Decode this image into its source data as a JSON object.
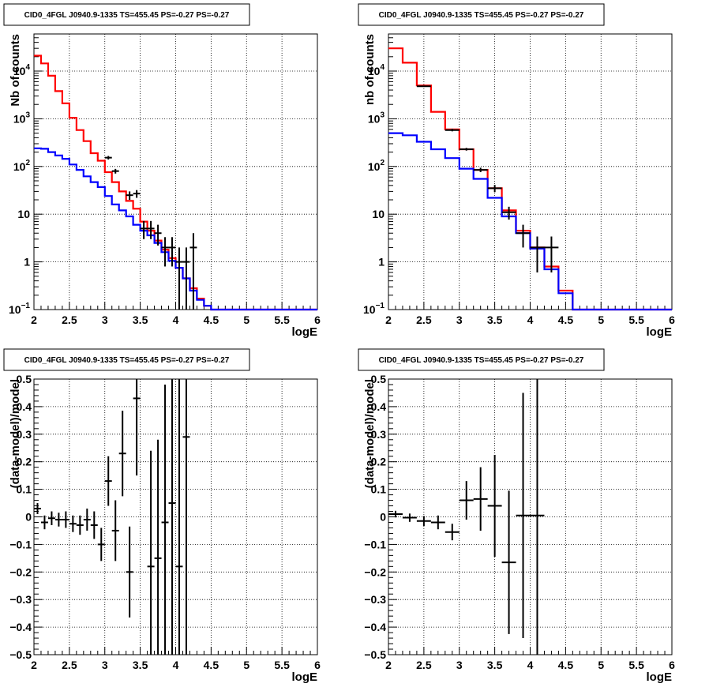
{
  "chart_data": [
    {
      "type": "line",
      "title": "CID0_4FGL J0940.9-1335 TS=455.45 PS=-0.27 PS=-0.27",
      "xlabel": "logE",
      "ylabel": "Nb of counts",
      "yscale": "log",
      "xlim": [
        2,
        6
      ],
      "ylim": [
        0.1,
        60000
      ],
      "x_ticks": [
        "2",
        "2.5",
        "3",
        "3.5",
        "4",
        "4.5",
        "5",
        "5.5",
        "6"
      ],
      "y_ticks": [
        {
          "value": 0.1,
          "base": "10",
          "exp": "−1"
        },
        {
          "value": 1,
          "label": "1"
        },
        {
          "value": 10,
          "label": "10"
        },
        {
          "value": 100,
          "base": "10",
          "exp": "2"
        },
        {
          "value": 1000,
          "base": "10",
          "exp": "3"
        },
        {
          "value": 10000,
          "base": "10",
          "exp": "4"
        }
      ],
      "grid": true,
      "series": [
        {
          "kind": "step",
          "color": "#ff0000",
          "edges": [
            2,
            2.1,
            2.2,
            2.3,
            2.4,
            2.5,
            2.6,
            2.7,
            2.8,
            2.9,
            3.0,
            3.1,
            3.2,
            3.3,
            3.4,
            3.5,
            3.6,
            3.7,
            3.8,
            3.9,
            4.0,
            4.1,
            4.2,
            4.3,
            4.4,
            4.5,
            6.0
          ],
          "values": [
            21000,
            14500,
            8000,
            3800,
            2100,
            1050,
            580,
            340,
            190,
            132,
            76,
            47,
            30,
            19,
            13,
            7,
            4.5,
            2.8,
            1.8,
            1.2,
            0.75,
            0.45,
            0.28,
            0.17,
            0.12,
            0.1
          ]
        },
        {
          "kind": "step",
          "color": "#0000ff",
          "edges": [
            2,
            2.1,
            2.2,
            2.3,
            2.4,
            2.5,
            2.6,
            2.7,
            2.8,
            2.9,
            3.0,
            3.1,
            3.2,
            3.3,
            3.4,
            3.5,
            3.6,
            3.7,
            3.8,
            3.9,
            4.0,
            4.1,
            4.2,
            4.3,
            4.4,
            4.5,
            6.0
          ],
          "values": [
            240,
            235,
            200,
            170,
            145,
            110,
            85,
            62,
            47,
            37,
            24,
            16,
            12,
            9,
            6,
            4.5,
            3.6,
            2.5,
            1.6,
            1.05,
            0.75,
            0.45,
            0.25,
            0.16,
            0.12,
            0.1
          ]
        },
        {
          "kind": "points",
          "color": "#000000",
          "xerr": 0.05,
          "points": [
            {
              "x": 3.05,
              "y": 153,
              "lo": 140,
              "hi": 166
            },
            {
              "x": 3.15,
              "y": 80,
              "lo": 71,
              "hi": 89
            },
            {
              "x": 3.35,
              "y": 25,
              "lo": 20,
              "hi": 30
            },
            {
              "x": 3.45,
              "y": 27,
              "lo": 22,
              "hi": 32
            },
            {
              "x": 3.55,
              "y": 5,
              "lo": 3,
              "hi": 7.2
            },
            {
              "x": 3.65,
              "y": 5,
              "lo": 3,
              "hi": 7.2
            },
            {
              "x": 3.75,
              "y": 4,
              "lo": 2.2,
              "hi": 6
            },
            {
              "x": 3.85,
              "y": 2,
              "lo": 0.8,
              "hi": 3.3
            },
            {
              "x": 3.95,
              "y": 2,
              "lo": 0.8,
              "hi": 3.3
            },
            {
              "x": 4.05,
              "y": 1,
              "lo": 0.1,
              "hi": 2
            },
            {
              "x": 4.15,
              "y": 1,
              "lo": 0.1,
              "hi": 2
            },
            {
              "x": 4.25,
              "y": 2,
              "lo": 0.1,
              "hi": 4
            }
          ]
        }
      ]
    },
    {
      "type": "line",
      "title": "CID0_4FGL J0940.9-1335 TS=455.45 PS=-0.27 PS=-0.27",
      "xlabel": "logE",
      "ylabel": "nb of counts",
      "yscale": "log",
      "xlim": [
        2,
        6
      ],
      "ylim": [
        0.1,
        60000
      ],
      "x_ticks": [
        "2",
        "2.5",
        "3",
        "3.5",
        "4",
        "4.5",
        "5",
        "5.5",
        "6"
      ],
      "y_ticks": [
        {
          "value": 0.1,
          "base": "10",
          "exp": "−1"
        },
        {
          "value": 1,
          "label": "1"
        },
        {
          "value": 10,
          "label": "10"
        },
        {
          "value": 100,
          "base": "10",
          "exp": "2"
        },
        {
          "value": 1000,
          "base": "10",
          "exp": "3"
        },
        {
          "value": 10000,
          "base": "10",
          "exp": "4"
        }
      ],
      "grid": true,
      "series": [
        {
          "kind": "step",
          "color": "#ff0000",
          "edges": [
            2,
            2.2,
            2.4,
            2.6,
            2.8,
            3.0,
            3.2,
            3.4,
            3.6,
            3.8,
            4.0,
            4.2,
            4.4,
            4.6,
            6.0
          ],
          "values": [
            30000,
            15000,
            5000,
            1400,
            600,
            230,
            85,
            35,
            12,
            4.5,
            2,
            0.8,
            0.25,
            0.1
          ]
        },
        {
          "kind": "step",
          "color": "#0000ff",
          "edges": [
            2,
            2.2,
            2.4,
            2.6,
            2.8,
            3.0,
            3.2,
            3.4,
            3.6,
            3.8,
            4.0,
            4.2,
            4.4,
            4.6,
            6.0
          ],
          "values": [
            500,
            450,
            330,
            230,
            150,
            90,
            55,
            22,
            9,
            4,
            1.9,
            0.7,
            0.22,
            0.1
          ]
        },
        {
          "kind": "points",
          "color": "#000000",
          "xerr": 0.1,
          "points": [
            {
              "x": 2.5,
              "y": 4800,
              "lo": 4650,
              "hi": 4950
            },
            {
              "x": 2.9,
              "y": 580,
              "lo": 545,
              "hi": 615
            },
            {
              "x": 3.1,
              "y": 230,
              "lo": 215,
              "hi": 245
            },
            {
              "x": 3.3,
              "y": 85,
              "lo": 76,
              "hi": 94
            },
            {
              "x": 3.5,
              "y": 35,
              "lo": 29,
              "hi": 41
            },
            {
              "x": 3.7,
              "y": 11,
              "lo": 7.7,
              "hi": 14.3
            },
            {
              "x": 3.9,
              "y": 4,
              "lo": 2,
              "hi": 6
            },
            {
              "x": 4.1,
              "y": 2,
              "lo": 0.6,
              "hi": 3.4
            },
            {
              "x": 4.3,
              "y": 2,
              "lo": 0.6,
              "hi": 3.4
            }
          ]
        }
      ]
    },
    {
      "type": "scatter",
      "title": "CID0_4FGL J0940.9-1335 TS=455.45 PS=-0.27 PS=-0.27",
      "xlabel": "logE",
      "ylabel": "(data-model)/model",
      "xlim": [
        2,
        6
      ],
      "ylim": [
        -0.5,
        0.5
      ],
      "x_ticks": [
        "2",
        "2.5",
        "3",
        "3.5",
        "4",
        "4.5",
        "5",
        "5.5",
        "6"
      ],
      "y_ticks": [
        "−0.5",
        "−0.4",
        "−0.3",
        "−0.2",
        "−0.1",
        "0",
        "0.1",
        "0.2",
        "0.3",
        "0.4",
        "0.5"
      ],
      "grid": true,
      "xerr": 0.05,
      "points": [
        {
          "x": 2.05,
          "y": 0.03,
          "err": 0.02
        },
        {
          "x": 2.15,
          "y": -0.02,
          "err": 0.025
        },
        {
          "x": 2.25,
          "y": -0.005,
          "err": 0.025
        },
        {
          "x": 2.35,
          "y": -0.01,
          "err": 0.025
        },
        {
          "x": 2.45,
          "y": -0.01,
          "err": 0.03
        },
        {
          "x": 2.55,
          "y": -0.025,
          "err": 0.03
        },
        {
          "x": 2.65,
          "y": -0.03,
          "err": 0.035
        },
        {
          "x": 2.75,
          "y": -0.01,
          "err": 0.04
        },
        {
          "x": 2.85,
          "y": -0.03,
          "err": 0.05
        },
        {
          "x": 2.95,
          "y": -0.1,
          "err": 0.06
        },
        {
          "x": 3.05,
          "y": 0.13,
          "err": 0.09
        },
        {
          "x": 3.15,
          "y": -0.05,
          "err": 0.11
        },
        {
          "x": 3.25,
          "y": 0.23,
          "err": 0.155
        },
        {
          "x": 3.35,
          "y": -0.2,
          "err": 0.165
        },
        {
          "x": 3.45,
          "y": 0.43,
          "err": 0.28
        },
        {
          "x": 3.65,
          "y": -0.18,
          "err": 0.42
        },
        {
          "x": 3.75,
          "y": -0.15,
          "err": 0.43
        },
        {
          "x": 3.85,
          "y": -0.02,
          "err": 0.5
        },
        {
          "x": 3.95,
          "y": 0.05,
          "err": 0.6
        },
        {
          "x": 4.05,
          "y": -0.18,
          "err": 0.7
        },
        {
          "x": 4.15,
          "y": 0.29,
          "err": 0.9
        }
      ]
    },
    {
      "type": "scatter",
      "title": "CID0_4FGL J0940.9-1335 TS=455.45 PS=-0.27 PS=-0.27",
      "xlabel": "logE",
      "ylabel": "(data-model)/model",
      "xlim": [
        2,
        6
      ],
      "ylim": [
        -0.5,
        0.5
      ],
      "x_ticks": [
        "2",
        "2.5",
        "3",
        "3.5",
        "4",
        "4.5",
        "5",
        "5.5",
        "6"
      ],
      "y_ticks": [
        "−0.5",
        "−0.4",
        "−0.3",
        "−0.2",
        "−0.1",
        "0",
        "0.1",
        "0.2",
        "0.3",
        "0.4",
        "0.5"
      ],
      "grid": true,
      "xerr": 0.1,
      "points": [
        {
          "x": 2.1,
          "y": 0.01,
          "err": 0.012
        },
        {
          "x": 2.3,
          "y": -0.003,
          "err": 0.015
        },
        {
          "x": 2.5,
          "y": -0.015,
          "err": 0.018
        },
        {
          "x": 2.7,
          "y": -0.02,
          "err": 0.025
        },
        {
          "x": 2.9,
          "y": -0.055,
          "err": 0.03
        },
        {
          "x": 3.1,
          "y": 0.06,
          "err": 0.07
        },
        {
          "x": 3.3,
          "y": 0.065,
          "err": 0.115
        },
        {
          "x": 3.5,
          "y": 0.04,
          "err": 0.185
        },
        {
          "x": 3.7,
          "y": -0.165,
          "err": 0.26
        },
        {
          "x": 3.9,
          "y": 0.005,
          "err": 0.445
        },
        {
          "x": 4.1,
          "y": 0.005,
          "err": 0.6
        }
      ]
    }
  ]
}
